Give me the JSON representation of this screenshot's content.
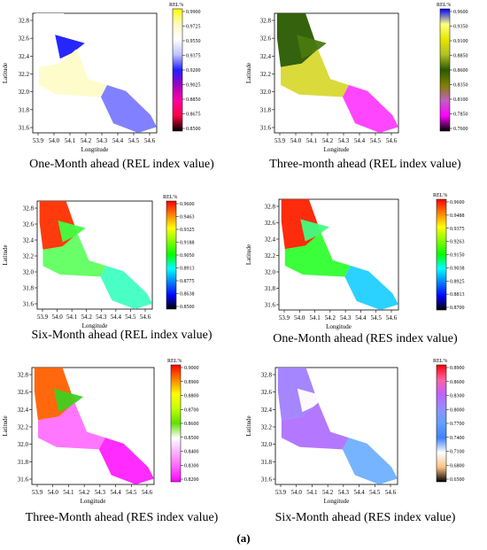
{
  "figure_label": "(a)",
  "panels": [
    {
      "caption": "One-Month ahead (REL index value)",
      "x_axis_label": "Longtitude",
      "y_axis_label": "Latitude",
      "x_ticks": [
        "53.9",
        "54.0",
        "54.1",
        "54.2",
        "54.3",
        "54.4",
        "54.5",
        "54.6"
      ],
      "y_ticks": [
        "32.8",
        "32.6",
        "32.4",
        "32.2",
        "32.0",
        "31.8",
        "31.6"
      ],
      "colorbar_title": "REL%",
      "colorbar_ticks": [
        "0.9900",
        "0.9725",
        "0.9550",
        "0.9375",
        "0.9200",
        "0.9025",
        "0.8850",
        "0.8675",
        "0.8500"
      ],
      "colorbar_colors": [
        "#ffff00",
        "#fffac0",
        "#ffffff",
        "#c0c0ff",
        "#2020ff",
        "#a000c0",
        "#ff00a0",
        "#ff0040",
        "#000000"
      ],
      "zones": [
        {
          "region": "north",
          "color": "#ffffff"
        },
        {
          "region": "blob",
          "color": "#1a1aff"
        },
        {
          "region": "middle",
          "color": "#fffcc8"
        },
        {
          "region": "south-east",
          "color": "#7a7aff"
        }
      ]
    },
    {
      "caption": "Three-month ahead (REL index value)",
      "x_axis_label": "Longitude",
      "y_axis_label": "Latitude",
      "x_ticks": [
        "53.9",
        "54.0",
        "54.1",
        "54.2",
        "54.3",
        "54.4",
        "54.5",
        "54.6"
      ],
      "y_ticks": [
        "32.8",
        "32.6",
        "32.4",
        "32.2",
        "32.0",
        "31.8",
        "31.6"
      ],
      "colorbar_title": "REL%",
      "colorbar_ticks": [
        "0.9600",
        "0.9350",
        "0.9100",
        "0.8850",
        "0.8600",
        "0.8350",
        "0.8100",
        "0.7850",
        "0.7600"
      ],
      "colorbar_colors": [
        "#0000ff",
        "#ffff80",
        "#e6e600",
        "#b0c020",
        "#2a5a00",
        "#808000",
        "#c060c0",
        "#ff00ff",
        "#000000"
      ],
      "zones": [
        {
          "region": "north",
          "color": "#2a5a00"
        },
        {
          "region": "blob",
          "color": "#4a7a10"
        },
        {
          "region": "middle",
          "color": "#d8d830"
        },
        {
          "region": "south-east",
          "color": "#ff3cff"
        }
      ]
    },
    {
      "caption": "Six-Month ahead (REL index value)",
      "x_axis_label": "Longitude",
      "y_axis_label": "Latitude",
      "x_ticks": [
        "53.9",
        "54.0",
        "54.1",
        "54.2",
        "54.3",
        "54.4",
        "54.5",
        "54.6"
      ],
      "y_ticks": [
        "32.8",
        "32.6",
        "32.4",
        "32.2",
        "32.0",
        "31.8",
        "31.6"
      ],
      "colorbar_title": "REL%",
      "colorbar_ticks": [
        "0.9600",
        "0.9463",
        "0.9325",
        "0.9188",
        "0.9050",
        "0.8913",
        "0.8775",
        "0.8638",
        "0.8500"
      ],
      "colorbar_colors": [
        "#ff0000",
        "#ff8000",
        "#ffff00",
        "#80ff00",
        "#00ff00",
        "#00ffff",
        "#0080ff",
        "#0000ff",
        "#000000"
      ],
      "zones": [
        {
          "region": "north",
          "color": "#ff3000"
        },
        {
          "region": "blob",
          "color": "#40ff40"
        },
        {
          "region": "middle",
          "color": "#60ff60"
        },
        {
          "region": "south-east",
          "color": "#40ffc0"
        }
      ]
    },
    {
      "caption": "One-Month ahead (RES index value)",
      "x_axis_label": "Longitude",
      "y_axis_label": "Latitude",
      "x_ticks": [
        "53.9",
        "54.0",
        "54.1",
        "54.2",
        "54.3",
        "54.4",
        "54.5",
        "54.6"
      ],
      "y_ticks": [
        "32.8",
        "32.6",
        "32.4",
        "32.2",
        "32.0",
        "31.8",
        "31.6"
      ],
      "colorbar_title": "REL%",
      "colorbar_ticks": [
        "0.9600",
        "0.9488",
        "0.9375",
        "0.9263",
        "0.9150",
        "0.9038",
        "0.8925",
        "0.8813",
        "0.8700"
      ],
      "colorbar_colors": [
        "#ff0000",
        "#ff8000",
        "#ffff00",
        "#80ff00",
        "#00ff00",
        "#00ffff",
        "#0080ff",
        "#0000ff",
        "#000000"
      ],
      "zones": [
        {
          "region": "north",
          "color": "#ff2000"
        },
        {
          "region": "blob",
          "color": "#40ff80"
        },
        {
          "region": "middle",
          "color": "#30ff30"
        },
        {
          "region": "south-east",
          "color": "#20d0ff"
        }
      ]
    },
    {
      "caption": "Three-Month ahead (RES index value)",
      "x_axis_label": "Longitude",
      "y_axis_label": "Latitude",
      "x_ticks": [
        "53.9",
        "54.0",
        "54.1",
        "54.2",
        "54.3",
        "54.4",
        "54.5",
        "54.6"
      ],
      "y_ticks": [
        "32.8",
        "32.6",
        "32.4",
        "32.2",
        "32.0",
        "31.8",
        "31.6"
      ],
      "colorbar_title": "REL%",
      "colorbar_ticks": [
        "0.9000",
        "0.8900",
        "0.8800",
        "0.8700",
        "0.8600",
        "0.8500",
        "0.8400",
        "0.8300",
        "0.8200"
      ],
      "colorbar_colors": [
        "#ff0000",
        "#ff8000",
        "#ffff00",
        "#c0ff00",
        "#60e000",
        "#ffffff",
        "#ffb0ff",
        "#ff60ff",
        "#ff00ff"
      ],
      "zones": [
        {
          "region": "north",
          "color": "#ff6000"
        },
        {
          "region": "blob",
          "color": "#40d020"
        },
        {
          "region": "middle",
          "color": "#ff70ff"
        },
        {
          "region": "south-east",
          "color": "#ff20ff"
        }
      ]
    },
    {
      "caption": "Six-Month ahead (RES index value)",
      "x_axis_label": "Longitude",
      "y_axis_label": "Latitude",
      "x_ticks": [
        "53.9",
        "54.0",
        "54.1",
        "54.2",
        "54.3",
        "54.4",
        "54.5",
        "54.6"
      ],
      "y_ticks": [
        "32.8",
        "32.6",
        "32.4",
        "32.2",
        "32.0",
        "31.8",
        "31.6"
      ],
      "colorbar_title": "REL%",
      "colorbar_ticks": [
        "0.8900",
        "0.8600",
        "0.8300",
        "0.8000",
        "0.7700",
        "0.7400",
        "0.7100",
        "0.6800",
        "0.6500"
      ],
      "colorbar_colors": [
        "#ff0000",
        "#ff60a0",
        "#c060ff",
        "#9090ff",
        "#60a0ff",
        "#4080ff",
        "#ffffff",
        "#ffc080",
        "#000000"
      ],
      "zones": [
        {
          "region": "north",
          "color": "#a080ff"
        },
        {
          "region": "blob",
          "color": "#ffffff"
        },
        {
          "region": "middle",
          "color": "#b070ff"
        },
        {
          "region": "south-east",
          "color": "#70b0ff"
        }
      ]
    }
  ]
}
